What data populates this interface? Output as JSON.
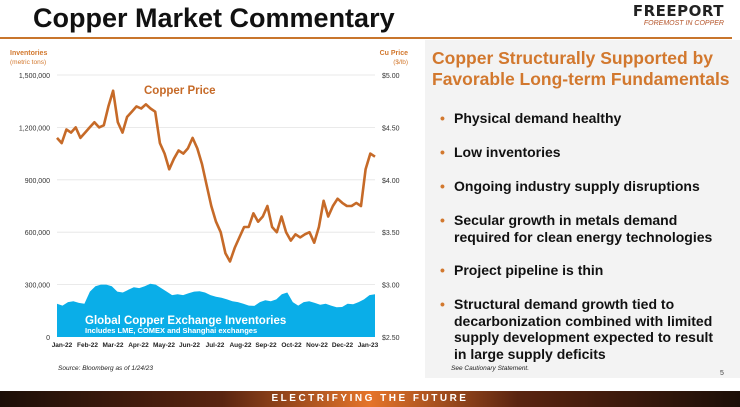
{
  "title": "Copper Market Commentary",
  "logo": {
    "name": "FREEPORT",
    "tagline": "FOREMOST IN COPPER"
  },
  "right_panel": {
    "heading_lines": [
      "Copper Structurally Supported by",
      "Favorable Long-term Fundamentals"
    ],
    "bullets": [
      [
        "Physical demand healthy"
      ],
      [
        "Low inventories"
      ],
      [
        "Ongoing industry supply disruptions"
      ],
      [
        "Secular growth in metals demand",
        "required for clean energy technologies"
      ],
      [
        "Project pipeline is thin"
      ],
      [
        "Structural demand growth tied to",
        "decarbonization combined with limited",
        "supply development expected to result",
        "in large supply deficits"
      ]
    ],
    "footnote": "See Cautionary Statement."
  },
  "source": "Source: Bloomberg as of 1/24/23",
  "page_number": "5",
  "banner": "ELECTRIFYING THE FUTURE",
  "colors": {
    "accent": "#d2782e",
    "price_line": "#c66a28",
    "inventory_fill": "#0aaee8"
  },
  "chart_data": {
    "type": "line+area",
    "left_axis_label": [
      "Inventories",
      "(metric tons)"
    ],
    "right_axis_label": [
      "Cu Price",
      "($/lb)"
    ],
    "left_ticks": [
      "0",
      "300,000",
      "600,000",
      "900,000",
      "1,200,000",
      "1,500,000"
    ],
    "right_ticks": [
      "$2.50",
      "$3.00",
      "$3.50",
      "$4.00",
      "$4.50",
      "$5.00"
    ],
    "left_range": [
      0,
      1500000
    ],
    "right_range": [
      2.5,
      5.0
    ],
    "x_ticks": [
      "Jan-22",
      "Feb-22",
      "Mar-22",
      "Apr-22",
      "May-22",
      "Jun-22",
      "Jul-22",
      "Aug-22",
      "Sep-22",
      "Oct-22",
      "Nov-22",
      "Dec-22",
      "Jan-23"
    ],
    "grid": true,
    "series": [
      {
        "name": "Copper Price",
        "axis": "right",
        "values": [
          4.4,
          4.35,
          4.48,
          4.45,
          4.5,
          4.4,
          4.45,
          4.5,
          4.55,
          4.5,
          4.52,
          4.7,
          4.85,
          4.55,
          4.45,
          4.6,
          4.65,
          4.7,
          4.68,
          4.72,
          4.68,
          4.65,
          4.35,
          4.25,
          4.1,
          4.2,
          4.28,
          4.25,
          4.3,
          4.4,
          4.3,
          4.15,
          3.95,
          3.75,
          3.6,
          3.5,
          3.3,
          3.22,
          3.35,
          3.45,
          3.55,
          3.55,
          3.68,
          3.6,
          3.65,
          3.75,
          3.55,
          3.5,
          3.65,
          3.5,
          3.42,
          3.48,
          3.45,
          3.48,
          3.5,
          3.4,
          3.55,
          3.8,
          3.65,
          3.75,
          3.82,
          3.78,
          3.75,
          3.75,
          3.78,
          3.75,
          4.1,
          4.25,
          4.22
        ]
      },
      {
        "name": "Global Copper Exchange Inventories",
        "subtitle": "Includes LME, COMEX and Shanghai exchanges",
        "axis": "left",
        "values": [
          190000,
          180000,
          200000,
          205000,
          195000,
          190000,
          260000,
          290000,
          300000,
          300000,
          290000,
          260000,
          255000,
          270000,
          285000,
          280000,
          290000,
          305000,
          300000,
          280000,
          260000,
          240000,
          245000,
          240000,
          250000,
          260000,
          262000,
          255000,
          240000,
          230000,
          225000,
          215000,
          205000,
          200000,
          190000,
          180000,
          178000,
          200000,
          210000,
          205000,
          215000,
          245000,
          255000,
          200000,
          180000,
          200000,
          205000,
          195000,
          185000,
          190000,
          180000,
          170000,
          172000,
          190000,
          188000,
          200000,
          215000,
          240000,
          245000
        ]
      }
    ]
  }
}
